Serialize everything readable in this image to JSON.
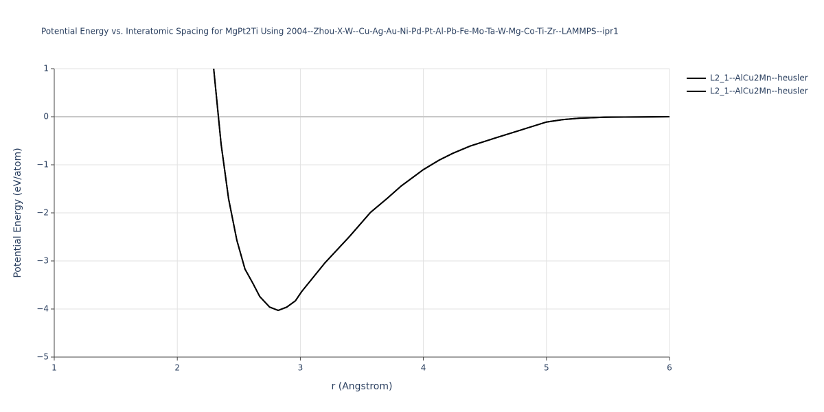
{
  "chart_data": {
    "type": "line",
    "title": "Potential Energy vs. Interatomic Spacing for MgPt2Ti Using 2004--Zhou-X-W--Cu-Ag-Au-Ni-Pd-Pt-Al-Pb-Fe-Mo-Ta-W-Mg-Co-Ti-Zr--LAMMPS--ipr1",
    "x_label": "r (Angstrom)",
    "y_label": "Potential Energy (eV/atom)",
    "xlim": [
      1,
      6
    ],
    "ylim": [
      -5,
      1
    ],
    "xticks": [
      1,
      2,
      3,
      4,
      5,
      6
    ],
    "yticks": [
      {
        "value": -5,
        "label": "−5"
      },
      {
        "value": -4,
        "label": "−4"
      },
      {
        "value": -3,
        "label": "−3"
      },
      {
        "value": -2,
        "label": "−2"
      },
      {
        "value": -1,
        "label": "−1"
      },
      0,
      1
    ],
    "grid": true,
    "legend": "top-right",
    "series": [
      {
        "name": "L2_1--AlCu2Mn--heusler",
        "color": "#000000",
        "x": [
          2.29,
          2.356,
          2.417,
          2.484,
          2.55,
          2.613,
          2.67,
          2.75,
          2.82,
          2.89,
          2.96,
          3.01,
          3.2,
          3.4,
          3.57,
          3.71,
          3.82,
          4.0,
          4.13,
          4.24,
          4.38,
          4.6,
          4.8,
          5.0,
          5.13,
          5.27,
          5.47,
          5.75,
          6.0
        ],
        "values": [
          1.15,
          -0.57,
          -1.71,
          -2.57,
          -3.17,
          -3.46,
          -3.74,
          -3.96,
          -4.03,
          -3.96,
          -3.83,
          -3.64,
          -3.04,
          -2.49,
          -1.99,
          -1.69,
          -1.44,
          -1.1,
          -0.9,
          -0.76,
          -0.61,
          -0.43,
          -0.27,
          -0.11,
          -0.06,
          -0.03,
          -0.01,
          -0.005,
          0
        ]
      },
      {
        "name": "L2_1--AlCu2Mn--heusler",
        "color": "#000000",
        "x": [
          2.29,
          2.356,
          2.417,
          2.484,
          2.55,
          2.613,
          2.67,
          2.75,
          2.82,
          2.89,
          2.96,
          3.01,
          3.2,
          3.4,
          3.57,
          3.71,
          3.82,
          4.0,
          4.13,
          4.24,
          4.38,
          4.6,
          4.8,
          5.0,
          5.13,
          5.27,
          5.47,
          5.75,
          6.0
        ],
        "values": [
          1.15,
          -0.57,
          -1.71,
          -2.57,
          -3.17,
          -3.46,
          -3.74,
          -3.96,
          -4.03,
          -3.96,
          -3.83,
          -3.64,
          -3.04,
          -2.49,
          -1.99,
          -1.69,
          -1.44,
          -1.1,
          -0.9,
          -0.76,
          -0.61,
          -0.43,
          -0.27,
          -0.11,
          -0.06,
          -0.03,
          -0.01,
          -0.005,
          0
        ]
      }
    ]
  }
}
